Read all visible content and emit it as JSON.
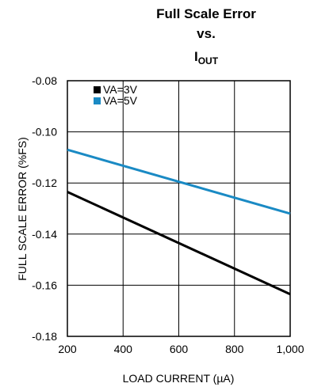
{
  "title": {
    "line1": "Full Scale Error",
    "line2": "vs.",
    "line3_main": "I",
    "line3_sub": "OUT"
  },
  "chart_data": {
    "type": "line",
    "xlabel": "LOAD CURRENT (µA)",
    "ylabel": "FULL SCALE ERROR (%FS)",
    "xlim": [
      200,
      1000
    ],
    "ylim": [
      -0.18,
      -0.08
    ],
    "x_ticks": [
      200,
      400,
      600,
      800,
      1000
    ],
    "x_tick_labels": [
      "200",
      "400",
      "600",
      "800",
      "1,000"
    ],
    "y_ticks": [
      -0.08,
      -0.1,
      -0.12,
      -0.14,
      -0.16,
      -0.18
    ],
    "y_tick_labels": [
      "-0.08",
      "-0.10",
      "-0.12",
      "-0.14",
      "-0.16",
      "-0.18"
    ],
    "grid": true,
    "legend_position": "top-left",
    "series": [
      {
        "name": "VA=3V",
        "color": "#000000",
        "x": [
          200,
          1000
        ],
        "y": [
          -0.1235,
          -0.1635
        ]
      },
      {
        "name": "VA=5V",
        "color": "#1a8ac4",
        "x": [
          200,
          1000
        ],
        "y": [
          -0.107,
          -0.132
        ]
      }
    ]
  }
}
